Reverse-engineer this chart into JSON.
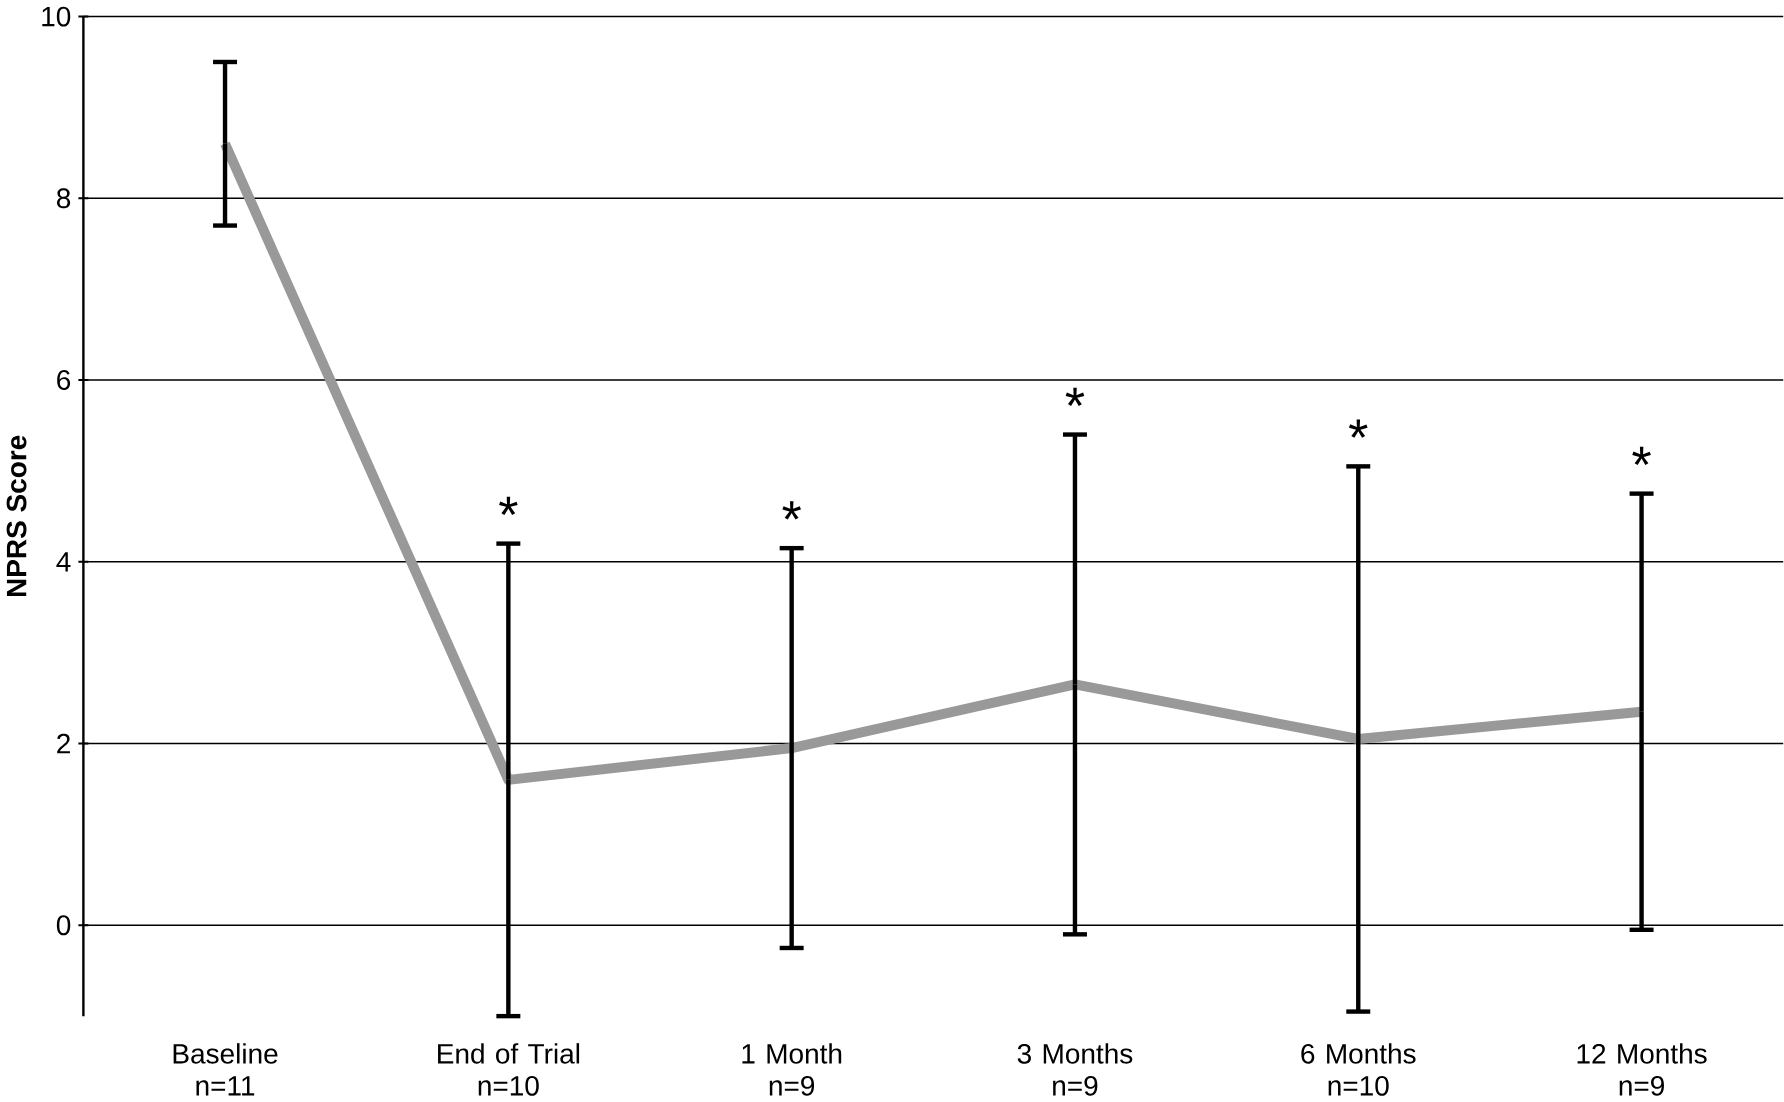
{
  "chart_data": {
    "type": "line",
    "ylabel": "NPRS Score",
    "categories": [
      "Baseline\nn=11",
      "End of Trial\nn=10",
      "1 Month\nn=9",
      "3 Months\nn=9",
      "6 Months\nn=10",
      "12 Months\nn=9"
    ],
    "values": [
      8.6,
      1.6,
      1.95,
      2.65,
      2.05,
      2.35
    ],
    "errors": [
      0.9,
      2.6,
      2.2,
      2.75,
      3.0,
      2.4
    ],
    "color": "#999999",
    "marker": "none",
    "grid": "y",
    "ylim": [
      -1,
      10
    ],
    "yticks": [
      0,
      2,
      4,
      6,
      8,
      10
    ],
    "annotations": [
      "*",
      "*",
      "*",
      "*",
      "*"
    ]
  }
}
